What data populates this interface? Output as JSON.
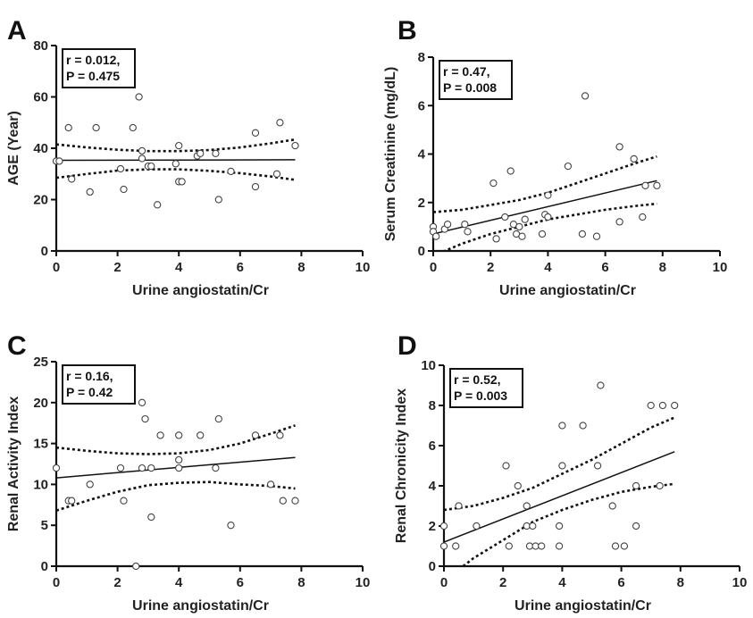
{
  "chart_data": [
    {
      "panel": "A",
      "type": "scatter",
      "xlabel": "Urine angiostatin/Cr",
      "ylabel": "AGE (Year)",
      "xlim": [
        0,
        10
      ],
      "ylim": [
        0,
        80
      ],
      "xticks": [
        "0",
        "2",
        "4",
        "6",
        "8",
        "10"
      ],
      "yticks": [
        "0",
        "20",
        "40",
        "60",
        "80"
      ],
      "annotation": [
        "r = 0.012,",
        "P = 0.475"
      ],
      "points": [
        [
          0.0,
          35
        ],
        [
          0.1,
          35
        ],
        [
          0.4,
          48
        ],
        [
          0.5,
          28
        ],
        [
          1.1,
          23
        ],
        [
          1.3,
          48
        ],
        [
          2.1,
          32
        ],
        [
          2.2,
          24
        ],
        [
          2.5,
          48
        ],
        [
          2.7,
          60
        ],
        [
          2.8,
          39
        ],
        [
          2.8,
          36
        ],
        [
          3.0,
          33
        ],
        [
          3.1,
          33
        ],
        [
          3.3,
          18
        ],
        [
          3.9,
          34
        ],
        [
          4.0,
          41
        ],
        [
          4.0,
          27
        ],
        [
          4.1,
          27
        ],
        [
          4.6,
          37
        ],
        [
          4.7,
          38
        ],
        [
          5.2,
          38
        ],
        [
          5.3,
          20
        ],
        [
          5.7,
          31
        ],
        [
          6.5,
          46
        ],
        [
          6.5,
          25
        ],
        [
          7.2,
          30
        ],
        [
          7.3,
          50
        ],
        [
          7.8,
          41
        ]
      ],
      "fit": [
        [
          0,
          35.3
        ],
        [
          7.8,
          35.5
        ]
      ],
      "ci_upper": [
        [
          0,
          41.5
        ],
        [
          1,
          40.3
        ],
        [
          2,
          39.4
        ],
        [
          3,
          38.9
        ],
        [
          4,
          38.9
        ],
        [
          5,
          39.3
        ],
        [
          6,
          40.3
        ],
        [
          7,
          41.9
        ],
        [
          7.8,
          43.4
        ]
      ],
      "ci_lower": [
        [
          0,
          28.5
        ],
        [
          1,
          30.0
        ],
        [
          2,
          31.3
        ],
        [
          3,
          31.8
        ],
        [
          4,
          31.8
        ],
        [
          5,
          31.2
        ],
        [
          6,
          30.3
        ],
        [
          7,
          29.0
        ],
        [
          7.8,
          27.7
        ]
      ]
    },
    {
      "panel": "B",
      "type": "scatter",
      "xlabel": "Urine angiostatin/Cr",
      "ylabel": "Serum Creatinine (mg/dL)",
      "xlim": [
        0,
        10
      ],
      "ylim": [
        0,
        8
      ],
      "xticks": [
        "0",
        "2",
        "4",
        "6",
        "8",
        "10"
      ],
      "yticks": [
        "0",
        "2",
        "4",
        "6",
        "8"
      ],
      "annotation": [
        "r = 0.47,",
        "P = 0.008"
      ],
      "points": [
        [
          0.0,
          1.0
        ],
        [
          0.0,
          0.8
        ],
        [
          0.1,
          0.6
        ],
        [
          0.4,
          0.9
        ],
        [
          0.5,
          1.1
        ],
        [
          1.1,
          1.1
        ],
        [
          1.2,
          0.8
        ],
        [
          2.1,
          2.8
        ],
        [
          2.2,
          0.5
        ],
        [
          2.5,
          1.4
        ],
        [
          2.7,
          3.3
        ],
        [
          2.8,
          1.1
        ],
        [
          2.9,
          0.7
        ],
        [
          3.0,
          1.0
        ],
        [
          3.1,
          0.6
        ],
        [
          3.2,
          1.3
        ],
        [
          3.8,
          0.7
        ],
        [
          3.9,
          1.5
        ],
        [
          4.0,
          1.4
        ],
        [
          4.0,
          2.3
        ],
        [
          4.7,
          3.5
        ],
        [
          5.2,
          0.7
        ],
        [
          5.3,
          6.4
        ],
        [
          5.7,
          0.6
        ],
        [
          6.5,
          4.3
        ],
        [
          6.5,
          1.2
        ],
        [
          7.0,
          3.8
        ],
        [
          7.3,
          1.4
        ],
        [
          7.4,
          2.7
        ],
        [
          7.8,
          2.7
        ]
      ],
      "fit": [
        [
          0,
          0.7
        ],
        [
          7.8,
          2.9
        ]
      ],
      "ci_upper": [
        [
          0,
          1.6
        ],
        [
          1,
          1.7
        ],
        [
          2,
          1.9
        ],
        [
          3,
          2.1
        ],
        [
          4,
          2.4
        ],
        [
          5,
          2.8
        ],
        [
          6,
          3.2
        ],
        [
          7,
          3.6
        ],
        [
          7.8,
          3.9
        ]
      ],
      "ci_lower": [
        [
          0,
          -0.2
        ],
        [
          1,
          0.3
        ],
        [
          2,
          0.7
        ],
        [
          3,
          1.0
        ],
        [
          4,
          1.3
        ],
        [
          5,
          1.5
        ],
        [
          6,
          1.7
        ],
        [
          7,
          1.85
        ],
        [
          7.8,
          1.95
        ]
      ]
    },
    {
      "panel": "C",
      "type": "scatter",
      "xlabel": "Urine angiostatin/Cr",
      "ylabel": "Renal Activity Index",
      "xlim": [
        0,
        10
      ],
      "ylim": [
        0,
        25
      ],
      "xticks": [
        "0",
        "2",
        "4",
        "6",
        "8",
        "10"
      ],
      "yticks": [
        "0",
        "5",
        "10",
        "15",
        "20",
        "25"
      ],
      "annotation": [
        "r = 0.16,",
        "P = 0.42"
      ],
      "points": [
        [
          0.0,
          12
        ],
        [
          0.4,
          8
        ],
        [
          0.5,
          8
        ],
        [
          1.1,
          10
        ],
        [
          2.1,
          12
        ],
        [
          2.2,
          8
        ],
        [
          2.6,
          0
        ],
        [
          2.8,
          20
        ],
        [
          2.8,
          12
        ],
        [
          2.9,
          18
        ],
        [
          3.1,
          12
        ],
        [
          3.1,
          6
        ],
        [
          3.4,
          16
        ],
        [
          4.0,
          16
        ],
        [
          4.0,
          13
        ],
        [
          4.0,
          12
        ],
        [
          4.7,
          16
        ],
        [
          5.2,
          12
        ],
        [
          5.3,
          18
        ],
        [
          5.7,
          5
        ],
        [
          6.5,
          16
        ],
        [
          7.0,
          10
        ],
        [
          7.3,
          16
        ],
        [
          7.4,
          8
        ],
        [
          7.8,
          8
        ]
      ],
      "fit": [
        [
          0,
          10.8
        ],
        [
          7.8,
          13.3
        ]
      ],
      "ci_upper": [
        [
          0,
          14.5
        ],
        [
          1,
          14.1
        ],
        [
          2,
          13.8
        ],
        [
          3,
          13.7
        ],
        [
          4,
          13.8
        ],
        [
          5,
          14.2
        ],
        [
          6,
          15.0
        ],
        [
          7,
          16.2
        ],
        [
          7.8,
          17.2
        ]
      ],
      "ci_lower": [
        [
          0,
          6.8
        ],
        [
          1,
          8.0
        ],
        [
          2,
          9.1
        ],
        [
          3,
          9.9
        ],
        [
          4,
          10.2
        ],
        [
          5,
          10.3
        ],
        [
          6,
          10.0
        ],
        [
          7,
          9.8
        ],
        [
          7.8,
          9.5
        ]
      ]
    },
    {
      "panel": "D",
      "type": "scatter",
      "xlabel": "Urine angiostatin/Cr",
      "ylabel": "Renal Chronicity Index",
      "xlim": [
        0,
        10
      ],
      "ylim": [
        0,
        10
      ],
      "xticks": [
        "0",
        "2",
        "4",
        "6",
        "8",
        "10"
      ],
      "yticks": [
        "0",
        "2",
        "4",
        "6",
        "8",
        "10"
      ],
      "annotation": [
        "r = 0.52,",
        "P = 0.003"
      ],
      "points": [
        [
          0.0,
          2
        ],
        [
          0.0,
          1
        ],
        [
          0.4,
          1
        ],
        [
          0.5,
          3
        ],
        [
          1.1,
          2
        ],
        [
          2.1,
          5
        ],
        [
          2.2,
          1
        ],
        [
          2.5,
          4
        ],
        [
          2.8,
          3
        ],
        [
          2.8,
          2
        ],
        [
          2.9,
          1
        ],
        [
          3.0,
          2
        ],
        [
          3.1,
          1
        ],
        [
          3.3,
          1
        ],
        [
          3.9,
          1
        ],
        [
          3.9,
          2
        ],
        [
          4.0,
          7
        ],
        [
          4.0,
          5
        ],
        [
          4.7,
          7
        ],
        [
          5.2,
          5
        ],
        [
          5.3,
          9
        ],
        [
          5.7,
          3
        ],
        [
          5.8,
          1
        ],
        [
          6.1,
          1
        ],
        [
          6.5,
          4
        ],
        [
          6.5,
          2
        ],
        [
          7.0,
          8
        ],
        [
          7.3,
          4
        ],
        [
          7.4,
          8
        ],
        [
          7.8,
          8
        ]
      ],
      "fit": [
        [
          0,
          1.2
        ],
        [
          7.8,
          5.7
        ]
      ],
      "ci_upper": [
        [
          0,
          2.8
        ],
        [
          1,
          3.0
        ],
        [
          2,
          3.4
        ],
        [
          3,
          3.9
        ],
        [
          4,
          4.6
        ],
        [
          5,
          5.3
        ],
        [
          6,
          6.1
        ],
        [
          7,
          6.9
        ],
        [
          7.8,
          7.4
        ]
      ],
      "ci_lower": [
        [
          0.65,
          0
        ],
        [
          1,
          0.4
        ],
        [
          2,
          1.3
        ],
        [
          3,
          2.2
        ],
        [
          4,
          2.8
        ],
        [
          5,
          3.3
        ],
        [
          6,
          3.7
        ],
        [
          7,
          3.95
        ],
        [
          7.8,
          4.1
        ]
      ]
    }
  ]
}
